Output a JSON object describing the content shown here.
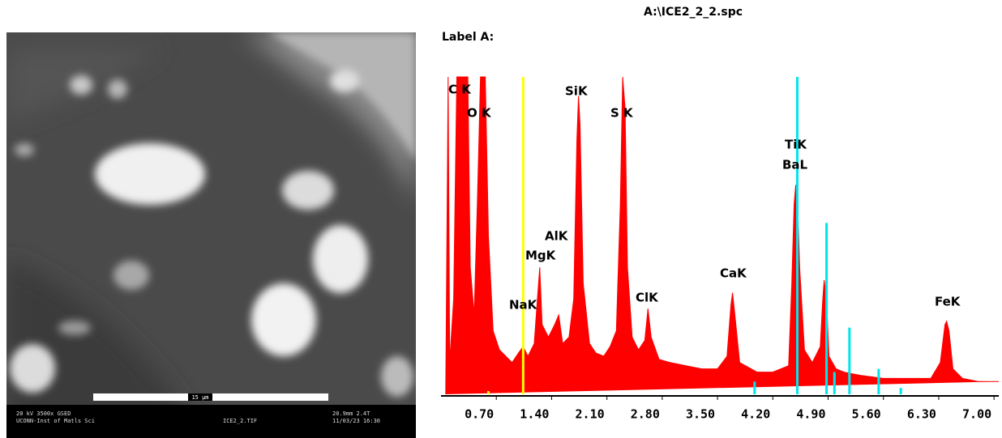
{
  "image": {
    "scale_label": "15 μm",
    "caption_left": [
      "20 kV  3500x    GSED",
      "UCONN-Inst of Matls Sci"
    ],
    "caption_mid": "ICE2_2.TIF",
    "caption_right": [
      "20.9mm  2.4T",
      "11/03/23 16:30"
    ]
  },
  "chart_data": {
    "type": "spectrum",
    "title": "A:\\ICE2_2_2.spc",
    "subtitle": "Label A:",
    "color": "#ff0000",
    "x": [
      0.06,
      0.09,
      0.11,
      0.16,
      0.2,
      0.28,
      0.34,
      0.37,
      0.42,
      0.46,
      0.5,
      0.56,
      0.6,
      0.66,
      0.74,
      0.82,
      0.9,
      0.98,
      1.04,
      1.1,
      1.18,
      1.22,
      1.25,
      1.28,
      1.36,
      1.44,
      1.49,
      1.54,
      1.62,
      1.68,
      1.72,
      1.74,
      1.76,
      1.8,
      1.88,
      1.96,
      2.06,
      2.14,
      2.22,
      2.27,
      2.3,
      2.33,
      2.36,
      2.42,
      2.5,
      2.58,
      2.62,
      2.66,
      2.76,
      2.9,
      3.1,
      3.3,
      3.5,
      3.62,
      3.67,
      3.69,
      3.72,
      3.78,
      4.0,
      4.2,
      4.4,
      4.44,
      4.47,
      4.49,
      4.51,
      4.54,
      4.6,
      4.7,
      4.8,
      4.83,
      4.85,
      4.88,
      4.91,
      5.0,
      5.1,
      5.3,
      5.6,
      5.9,
      6.2,
      6.32,
      6.38,
      6.4,
      6.43,
      6.48,
      6.6,
      6.8,
      7.06
    ],
    "values": [
      0,
      100,
      10,
      30,
      100,
      100,
      100,
      40,
      25,
      60,
      100,
      100,
      50,
      20,
      14,
      12,
      10,
      13,
      15,
      12,
      16,
      30,
      40,
      22,
      18,
      22,
      25,
      16,
      18,
      30,
      80,
      94,
      85,
      35,
      16,
      13,
      12,
      15,
      20,
      60,
      100,
      90,
      40,
      18,
      14,
      17,
      27,
      18,
      11,
      10,
      9,
      8,
      8,
      12,
      28,
      32,
      25,
      10,
      7,
      7,
      9,
      35,
      60,
      66,
      62,
      40,
      14,
      10,
      15,
      29,
      36,
      30,
      12,
      8,
      7,
      6,
      5,
      5,
      5,
      10,
      22,
      23,
      20,
      8,
      5,
      4,
      4
    ],
    "markers": [
      {
        "x": 1.04,
        "height": 100,
        "color": "#ffff00"
      },
      {
        "x": 0.6,
        "height": 1,
        "color": "#ffff00"
      },
      {
        "x": 4.51,
        "height": 100,
        "color": "#00e5ee"
      },
      {
        "x": 4.88,
        "height": 54,
        "color": "#00e5ee"
      },
      {
        "x": 5.17,
        "height": 21,
        "color": "#00e5ee"
      },
      {
        "x": 4.98,
        "height": 7,
        "color": "#00e5ee"
      },
      {
        "x": 5.54,
        "height": 8,
        "color": "#00e5ee"
      },
      {
        "x": 3.97,
        "height": 4,
        "color": "#00e5ee"
      },
      {
        "x": 5.82,
        "height": 2,
        "color": "#00e5ee"
      }
    ],
    "annotations": [
      "C K",
      "O K",
      "SiK",
      "S K",
      "TiK",
      "BaL",
      "AlK",
      "MgK",
      "NaK",
      "ClK",
      "CaK",
      "FeK"
    ],
    "xlim": [
      0,
      7.06
    ],
    "ylim": [
      0,
      100
    ],
    "xticks": [
      {
        "value": 0.7,
        "label": "0.70"
      },
      {
        "value": 1.4,
        "label": "1.40"
      },
      {
        "value": 2.1,
        "label": "2.10"
      },
      {
        "value": 2.8,
        "label": "2.80"
      },
      {
        "value": 3.5,
        "label": "3.50"
      },
      {
        "value": 4.2,
        "label": "4.20"
      },
      {
        "value": 4.9,
        "label": "4.90"
      },
      {
        "value": 5.6,
        "label": "5.60"
      },
      {
        "value": 6.3,
        "label": "6.30"
      },
      {
        "value": 7.0,
        "label": "7.00"
      }
    ]
  }
}
